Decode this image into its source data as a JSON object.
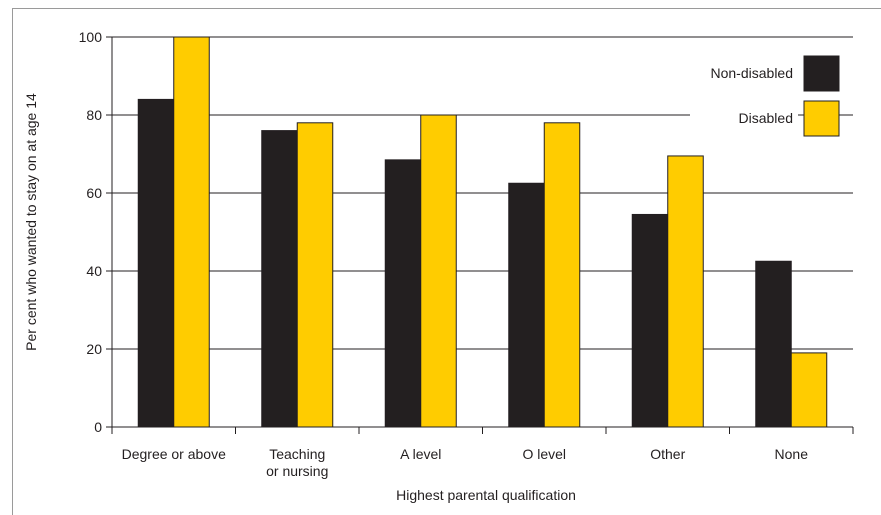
{
  "chart_data": {
    "type": "bar",
    "categories": [
      [
        "Degree or above"
      ],
      [
        "Teaching",
        "or nursing"
      ],
      [
        "A level"
      ],
      [
        "O level"
      ],
      [
        "Other"
      ],
      [
        "None"
      ]
    ],
    "series": [
      {
        "name": "Non-disabled",
        "color": "#231f20",
        "values": [
          84,
          76,
          68.5,
          62.5,
          54.5,
          42.5
        ]
      },
      {
        "name": "Disabled",
        "color": "#ffcc00",
        "values": [
          100,
          78,
          80,
          78,
          69.5,
          19
        ]
      }
    ],
    "xlabel": "Highest parental qualification",
    "ylabel": "Per cent who wanted to stay on at age 14",
    "ylim": [
      0,
      100
    ],
    "yticks": [
      0,
      20,
      40,
      60,
      80,
      100
    ],
    "grid": true,
    "legend_position": "top-right"
  }
}
